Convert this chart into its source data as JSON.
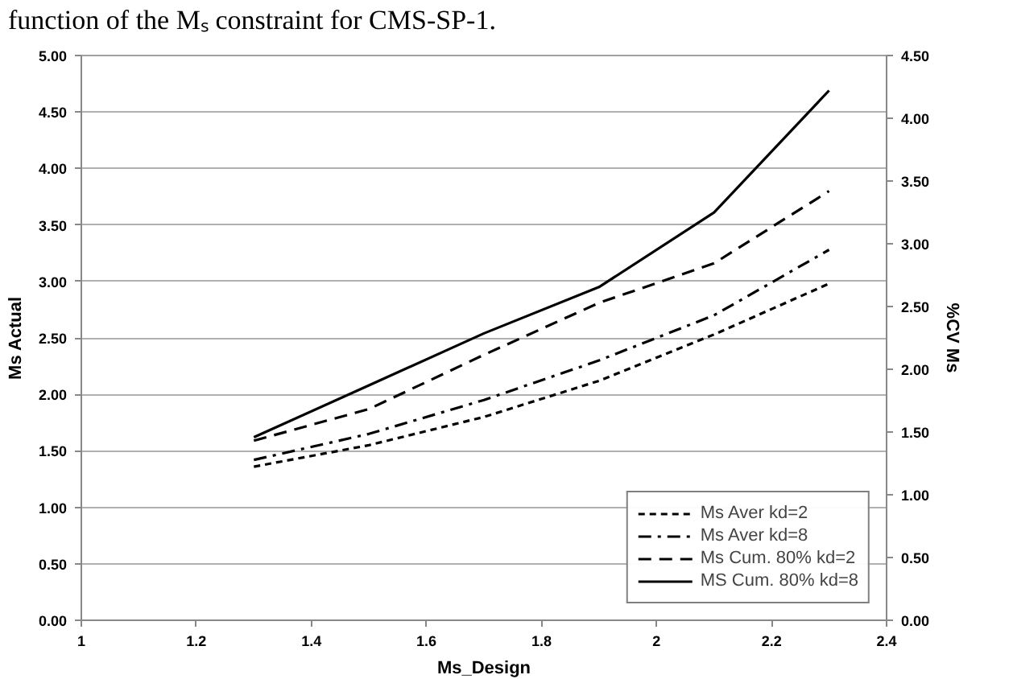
{
  "chart_data": {
    "type": "line",
    "annotations": [
      "function of the Mₛ constraint for CMS-SP-1."
    ],
    "xlabel": "Ms_Design",
    "ylabel": "Ms Actual",
    "y2label": "%CV Ms",
    "x": [
      1.3,
      1.5,
      1.7,
      1.9,
      2.1,
      2.3
    ],
    "series": [
      {
        "name": "Ms Aver kd=2",
        "color": "#000000",
        "line_style": "dotted",
        "values": [
          1.36,
          1.55,
          1.8,
          2.12,
          2.53,
          2.98
        ]
      },
      {
        "name": "Ms Aver kd=8",
        "color": "#000000",
        "line_style": "dashdot",
        "values": [
          1.42,
          1.65,
          1.95,
          2.3,
          2.7,
          3.28
        ]
      },
      {
        "name": "Ms Cum. 80% kd=2",
        "color": "#000000",
        "line_style": "dashed",
        "values": [
          1.59,
          1.87,
          2.35,
          2.81,
          3.16,
          3.8
        ]
      },
      {
        "name": "MS Cum. 80% kd=8",
        "color": "#000000",
        "line_style": "solid",
        "values": [
          1.62,
          2.08,
          2.54,
          2.95,
          3.61,
          4.69
        ]
      }
    ],
    "xlim": [
      1,
      2.4
    ],
    "xticks": [
      1,
      1.2,
      1.4,
      1.6,
      1.8,
      2,
      2.2,
      2.4
    ],
    "ylim": [
      0,
      5
    ],
    "yticks": [
      {
        "value": 0,
        "label": "0.00"
      },
      {
        "value": 0.5,
        "label": "0.50"
      },
      {
        "value": 1,
        "label": "1.00"
      },
      {
        "value": 1.5,
        "label": "1.50"
      },
      {
        "value": 2,
        "label": "2.00"
      },
      {
        "value": 2.5,
        "label": "2.50"
      },
      {
        "value": 3,
        "label": "3.00"
      },
      {
        "value": 3.5,
        "label": "3.50"
      },
      {
        "value": 4,
        "label": "4.00"
      },
      {
        "value": 4.5,
        "label": "4.50"
      },
      {
        "value": 5,
        "label": "5.00"
      }
    ],
    "y2lim": [
      0,
      4.5
    ],
    "y2ticks": [
      {
        "value": 0,
        "label": "0.00"
      },
      {
        "value": 0.5,
        "label": "0.50"
      },
      {
        "value": 1,
        "label": "1.00"
      },
      {
        "value": 1.5,
        "label": "1.50"
      },
      {
        "value": 2,
        "label": "2.00"
      },
      {
        "value": 2.5,
        "label": "2.50"
      },
      {
        "value": 3,
        "label": "3.00"
      },
      {
        "value": 3.5,
        "label": "3.50"
      },
      {
        "value": 4,
        "label": "4.00"
      },
      {
        "value": 4.5,
        "label": "4.50"
      }
    ],
    "grid": "y",
    "legend": "bottom right",
    "marker": "none"
  }
}
